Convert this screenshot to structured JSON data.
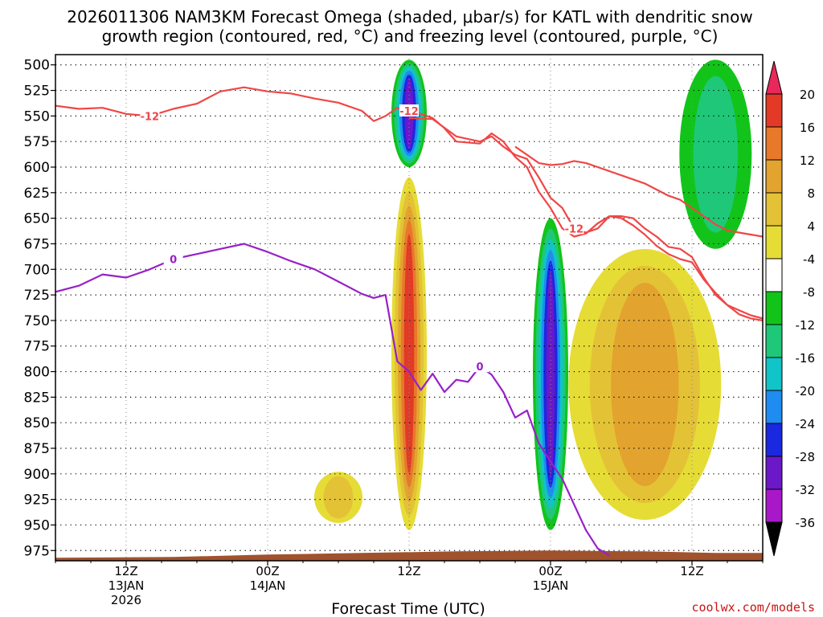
{
  "header": {
    "title_line1": "2026011306 NAM3KM Forecast Omega (shaded, μbar/s) for KATL with dendritic snow",
    "title_line2": "growth region (contoured, red, °C) and freezing level (contoured, purple, °C)"
  },
  "credit": "coolwx.com/models",
  "chart_data": {
    "type": "time-height cross section",
    "title": "2026011306 NAM3KM Forecast Omega (shaded, μbar/s) for KATL with dendritic snow growth region (contoured, red, °C) and freezing level (contoured, purple, °C)",
    "xlabel": "Forecast Time (UTC)",
    "ylabel": "",
    "x_range_hours": [
      0,
      60
    ],
    "x_ticks": [
      {
        "hour": 6,
        "label": "12Z",
        "sub1": "13JAN",
        "sub2": "2026"
      },
      {
        "hour": 18,
        "label": "00Z",
        "sub1": "14JAN",
        "sub2": ""
      },
      {
        "hour": 30,
        "label": "12Z",
        "sub1": "",
        "sub2": ""
      },
      {
        "hour": 42,
        "label": "00Z",
        "sub1": "15JAN",
        "sub2": ""
      },
      {
        "hour": 54,
        "label": "12Z",
        "sub1": "",
        "sub2": ""
      }
    ],
    "y_ticks_hpa": [
      500,
      525,
      550,
      575,
      600,
      625,
      650,
      675,
      700,
      725,
      750,
      775,
      800,
      825,
      850,
      875,
      900,
      925,
      950,
      975
    ],
    "y_range_hpa": [
      490,
      985
    ],
    "grid": true,
    "colorbar": {
      "levels": [
        20,
        16,
        12,
        8,
        4,
        -4,
        -8,
        -12,
        -16,
        -20,
        -24,
        -28,
        -32,
        -36
      ],
      "colors": [
        "#e8285a",
        "#e23a26",
        "#e8782a",
        "#e2a42e",
        "#e4c236",
        "#e6dc36",
        "#ffffff",
        "#12c41a",
        "#1ec878",
        "#10c4c8",
        "#1e8cf0",
        "#1a28e0",
        "#6a18c8",
        "#a818c8",
        "#aaaaaa",
        "#000000"
      ]
    },
    "series": [
      {
        "name": "-12",
        "color": "#f04646",
        "points": [
          [
            0,
            540
          ],
          [
            2,
            543
          ],
          [
            4,
            542
          ],
          [
            6,
            548
          ],
          [
            8,
            550
          ],
          [
            10,
            543
          ],
          [
            12,
            538
          ],
          [
            14,
            526
          ],
          [
            16,
            522
          ],
          [
            18,
            526
          ],
          [
            20,
            528
          ],
          [
            22,
            533
          ],
          [
            24,
            537
          ],
          [
            26,
            545
          ],
          [
            27,
            555
          ],
          [
            28,
            550
          ],
          [
            29,
            542
          ],
          [
            30,
            545
          ],
          [
            31,
            548
          ],
          [
            32,
            552
          ],
          [
            33,
            562
          ],
          [
            34,
            575
          ],
          [
            36,
            577
          ],
          [
            37,
            567
          ],
          [
            38,
            575
          ],
          [
            39,
            590
          ],
          [
            40,
            600
          ],
          [
            41,
            624
          ],
          [
            42,
            640
          ],
          [
            43,
            660
          ],
          [
            44,
            668
          ],
          [
            45,
            665
          ],
          [
            46,
            655
          ],
          [
            47,
            648
          ],
          [
            48,
            650
          ],
          [
            49,
            657
          ],
          [
            50,
            666
          ],
          [
            51,
            677
          ],
          [
            52,
            685
          ],
          [
            53,
            690
          ],
          [
            54,
            693
          ],
          [
            55,
            710
          ],
          [
            56,
            723
          ],
          [
            57,
            735
          ],
          [
            58,
            740
          ],
          [
            59,
            745
          ],
          [
            60,
            748
          ]
        ]
      },
      {
        "name": "-12",
        "color": "#f04646",
        "points": [
          [
            30,
            552
          ],
          [
            32,
            553
          ],
          [
            34,
            570
          ],
          [
            36,
            575
          ],
          [
            37,
            570
          ],
          [
            38,
            580
          ],
          [
            39,
            588
          ],
          [
            40,
            592
          ],
          [
            41,
            610
          ],
          [
            42,
            630
          ],
          [
            43,
            640
          ],
          [
            44,
            660
          ],
          [
            45,
            664
          ],
          [
            46,
            660
          ],
          [
            47,
            648
          ],
          [
            48,
            648
          ],
          [
            49,
            650
          ],
          [
            50,
            660
          ],
          [
            51,
            668
          ],
          [
            52,
            678
          ],
          [
            53,
            680
          ],
          [
            54,
            688
          ],
          [
            55,
            708
          ],
          [
            56,
            725
          ],
          [
            57,
            735
          ],
          [
            58,
            744
          ],
          [
            59,
            748
          ],
          [
            60,
            750
          ]
        ]
      },
      {
        "name": "-12",
        "color": "#f04646",
        "points": [
          [
            39,
            580
          ],
          [
            40,
            588
          ],
          [
            41,
            596
          ],
          [
            42,
            598
          ],
          [
            43,
            597
          ],
          [
            44,
            594
          ],
          [
            45,
            596
          ],
          [
            46,
            600
          ],
          [
            47,
            604
          ],
          [
            48,
            608
          ],
          [
            49,
            612
          ],
          [
            50,
            616
          ],
          [
            51,
            622
          ],
          [
            52,
            628
          ],
          [
            53,
            632
          ],
          [
            54,
            640
          ],
          [
            55,
            648
          ],
          [
            56,
            656
          ],
          [
            57,
            662
          ],
          [
            58,
            664
          ],
          [
            59,
            666
          ],
          [
            60,
            668
          ]
        ]
      },
      {
        "name": "0",
        "color": "#9820c8",
        "points": [
          [
            0,
            722
          ],
          [
            2,
            716
          ],
          [
            4,
            705
          ],
          [
            6,
            708
          ],
          [
            8,
            700
          ],
          [
            10,
            690
          ],
          [
            12,
            685
          ],
          [
            14,
            680
          ],
          [
            16,
            675
          ],
          [
            18,
            683
          ],
          [
            20,
            692
          ],
          [
            22,
            700
          ],
          [
            24,
            712
          ],
          [
            26,
            724
          ],
          [
            27,
            728
          ],
          [
            28,
            725
          ],
          [
            29,
            790
          ],
          [
            30,
            800
          ],
          [
            31,
            818
          ],
          [
            32,
            802
          ],
          [
            33,
            820
          ],
          [
            34,
            808
          ],
          [
            35,
            810
          ],
          [
            36,
            795
          ],
          [
            37,
            803
          ],
          [
            38,
            820
          ],
          [
            39,
            845
          ],
          [
            40,
            838
          ],
          [
            41,
            870
          ],
          [
            42,
            888
          ],
          [
            43,
            905
          ],
          [
            44,
            930
          ],
          [
            45,
            955
          ],
          [
            46,
            973
          ],
          [
            47,
            980
          ]
        ]
      }
    ],
    "omega_features": [
      {
        "center_hour": 30,
        "top_hpa": 495,
        "bottom_hpa": 600,
        "min_value": -24,
        "sign": "negative"
      },
      {
        "center_hour": 30,
        "top_hpa": 610,
        "bottom_hpa": 955,
        "max_value": 20,
        "sign": "positive"
      },
      {
        "center_hour": 42,
        "top_hpa": 650,
        "bottom_hpa": 955,
        "min_value": -24,
        "sign": "negative"
      },
      {
        "center_hour": 50,
        "top_hpa": 680,
        "bottom_hpa": 945,
        "max_value": 12,
        "sign": "positive"
      },
      {
        "center_hour": 56,
        "top_hpa": 495,
        "bottom_hpa": 680,
        "min_value": -8,
        "sign": "negative"
      },
      {
        "center_hour": 24,
        "top_hpa": 898,
        "bottom_hpa": 948,
        "max_value": 8,
        "sign": "positive"
      }
    ],
    "terrain": {
      "color": "#a0522d",
      "top_hpa": 975
    }
  }
}
